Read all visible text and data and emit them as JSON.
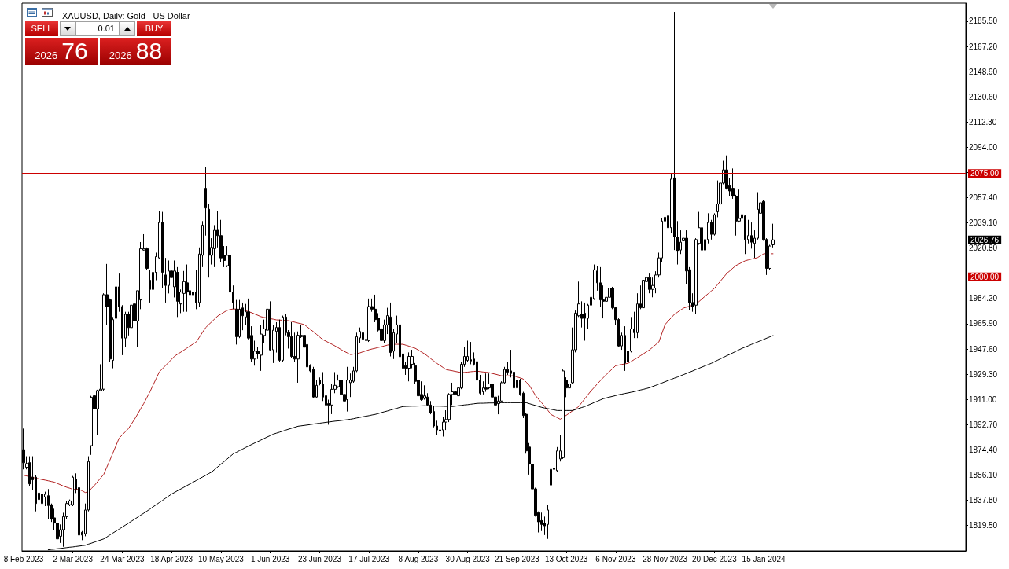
{
  "chart_data": {
    "type": "candlestick",
    "title": "XAUUSD, Daily: Gold - US Dollar",
    "color": "#000000",
    "annotations": [
      "SELL",
      "0.01",
      "BUY",
      "2026 76",
      "2026 88"
    ],
    "categories": [
      "8 Feb 2023",
      null,
      null,
      null,
      null,
      null,
      null,
      null,
      null,
      null,
      null,
      null,
      null,
      null,
      null,
      null,
      "2 Mar 2023",
      null,
      null,
      null,
      null,
      null,
      null,
      null,
      null,
      null,
      null,
      null,
      null,
      null,
      null,
      null,
      "24 Mar 2023",
      null,
      null,
      null,
      null,
      null,
      null,
      null,
      null,
      null,
      null,
      null,
      null,
      null,
      null,
      null,
      "18 Apr 2023",
      null,
      null,
      null,
      null,
      null,
      null,
      null,
      null,
      null,
      null,
      null,
      null,
      null,
      null,
      null,
      "10 May 2023",
      null,
      null,
      null,
      null,
      null,
      null,
      null,
      null,
      null,
      null,
      null,
      null,
      null,
      null,
      null,
      "1 Jun 2023",
      null,
      null,
      null,
      null,
      null,
      null,
      null,
      null,
      null,
      null,
      null,
      null,
      null,
      null,
      null,
      "23 Jun 2023",
      null,
      null,
      null,
      null,
      null,
      null,
      null,
      null,
      null,
      null,
      null,
      null,
      null,
      null,
      null,
      "17 Jul 2023",
      null,
      null,
      null,
      null,
      null,
      null,
      null,
      null,
      null,
      null,
      null,
      null,
      null,
      null,
      null,
      "8 Aug 2023",
      null,
      null,
      null,
      null,
      null,
      null,
      null,
      null,
      null,
      null,
      null,
      null,
      null,
      null,
      null,
      "30 Aug 2023",
      null,
      null,
      null,
      null,
      null,
      null,
      null,
      null,
      null,
      null,
      null,
      null,
      null,
      null,
      null,
      "21 Sep 2023",
      null,
      null,
      null,
      null,
      null,
      null,
      null,
      null,
      null,
      null,
      null,
      null,
      null,
      null,
      null,
      "13 Oct 2023",
      null,
      null,
      null,
      null,
      null,
      null,
      null,
      null,
      null,
      null,
      null,
      null,
      null,
      null,
      null,
      "6 Nov 2023",
      null,
      null,
      null,
      null,
      null,
      null,
      null,
      null,
      null,
      null,
      null,
      null,
      null,
      null,
      null,
      "28 Nov 2023",
      null,
      null,
      null,
      null,
      null,
      null,
      null,
      null,
      null,
      null,
      null,
      null,
      null,
      null,
      null,
      "20 Dec 2023",
      null,
      null,
      null,
      null,
      null,
      null,
      null,
      null,
      null,
      null,
      null,
      null,
      null,
      null,
      null,
      "15 Jan 2024",
      null,
      null,
      null
    ],
    "ohlc": [
      [
        1874.5,
        1889.8,
        1860.2,
        1865.0
      ],
      [
        1861.7,
        1869.7,
        1860.2,
        1864.4
      ],
      [
        1865.0,
        1869.7,
        1848.0,
        1849.7
      ],
      [
        1854.5,
        1869.7,
        1845.0,
        1852.6
      ],
      [
        1854.5,
        1856.0,
        1829.7,
        1835.4
      ],
      [
        1843.0,
        1846.9,
        1833.5,
        1838.3
      ],
      [
        1835.4,
        1844.0,
        1818.3,
        1842.1
      ],
      [
        1840.2,
        1844.0,
        1833.5,
        1842.1
      ],
      [
        1841.1,
        1845.9,
        1824.0,
        1833.9
      ],
      [
        1834.5,
        1835.4,
        1822.0,
        1824.0
      ],
      [
        1825.0,
        1831.6,
        1816.4,
        1821.2
      ],
      [
        1821.2,
        1826.9,
        1807.8,
        1809.7
      ],
      [
        1811.6,
        1820.2,
        1806.8,
        1816.4
      ],
      [
        1816.4,
        1828.7,
        1804.0,
        1825.9
      ],
      [
        1825.9,
        1837.3,
        1824.0,
        1835.4
      ],
      [
        1834.5,
        1838.3,
        1833.5,
        1837.3
      ],
      [
        1834.5,
        1855.4,
        1833.5,
        1854.5
      ],
      [
        1853.0,
        1857.3,
        1843.0,
        1845.9
      ],
      [
        1846.9,
        1848.0,
        1811.6,
        1812.5
      ],
      [
        1814.5,
        1815.4,
        1808.8,
        1812.5
      ],
      [
        1813.5,
        1835.4,
        1811.6,
        1830.7
      ],
      [
        1830.7,
        1869.7,
        1829.7,
        1865.9
      ],
      [
        1877.4,
        1913.6,
        1870.7,
        1912.6
      ],
      [
        1913.6,
        1914.0,
        1895.5,
        1904.1
      ],
      [
        1904.1,
        1918.0,
        1885.0,
        1917.4
      ],
      [
        1917.4,
        1936.5,
        1917.0,
        1918.4
      ],
      [
        1918.4,
        1988.0,
        1917.4,
        1987.0
      ],
      [
        1987.0,
        2009.3,
        1965.1,
        1978.4
      ],
      [
        1983.2,
        1984.2,
        1938.4,
        1940.3
      ],
      [
        1939.3,
        1970.8,
        1933.6,
        1968.9
      ],
      [
        1969.8,
        2002.3,
        1968.9,
        1992.7
      ],
      [
        1992.7,
        2002.3,
        1974.6,
        1978.4
      ],
      [
        1978.4,
        1979.4,
        1943.1,
        1955.5
      ],
      [
        1955.5,
        1974.6,
        1948.9,
        1972.7
      ],
      [
        1972.7,
        1974.6,
        1957.4,
        1963.1
      ],
      [
        1963.1,
        1986.0,
        1957.4,
        1979.4
      ],
      [
        1980.3,
        1987.0,
        1966.0,
        1967.9
      ],
      [
        1967.9,
        1989.9,
        1948.9,
        1989.9
      ],
      [
        1983.2,
        2025.2,
        1976.5,
        2020.4
      ],
      [
        2019.4,
        2030.9,
        2019.0,
        2020.4
      ],
      [
        2020.4,
        2021.3,
        2005.0,
        2006.1
      ],
      [
        1997.5,
        2005.0,
        1981.3,
        1990.8
      ],
      [
        1990.8,
        2007.0,
        1989.9,
        2003.2
      ],
      [
        2003.2,
        2017.5,
        1997.5,
        2014.6
      ],
      [
        2013.7,
        2048.0,
        2013.0,
        2039.4
      ],
      [
        2039.4,
        2047.1,
        1991.8,
        2003.2
      ],
      [
        2001.3,
        2013.7,
        1981.3,
        1993.7
      ],
      [
        1993.7,
        2011.8,
        1987.9,
        2004.2
      ],
      [
        2004.2,
        2008.9,
        1968.9,
        1999.4
      ],
      [
        1992.7,
        2011.8,
        1985.0,
        2004.2
      ],
      [
        2003.2,
        2007.0,
        1970.8,
        1982.2
      ],
      [
        1980.3,
        1990.8,
        1973.6,
        1988.9
      ],
      [
        1987.9,
        2004.2,
        1974.6,
        1996.5
      ],
      [
        1995.6,
        2008.9,
        1974.6,
        1988.9
      ],
      [
        1989.9,
        1993.7,
        1973.6,
        1987.0
      ],
      [
        1986.9,
        1990.8,
        1976.5,
        1988.9
      ],
      [
        1988.9,
        2005.1,
        1976.5,
        1981.3
      ],
      [
        1981.3,
        2021.3,
        1978.4,
        2016.5
      ],
      [
        2015.6,
        2040.4,
        2007.0,
        2037.5
      ],
      [
        2064.2,
        2079.5,
        2029.9,
        2049.9
      ],
      [
        2049.0,
        2052.8,
        1999.4,
        2015.6
      ],
      [
        2015.6,
        2028.0,
        2008.9,
        2021.3
      ],
      [
        2020.4,
        2037.5,
        2007.0,
        2033.7
      ],
      [
        2033.7,
        2048.0,
        2021.3,
        2029.9
      ],
      [
        2029.9,
        2041.3,
        2010.8,
        2013.7
      ],
      [
        2015.6,
        2022.3,
        2007.0,
        2011.8
      ],
      [
        2008.0,
        2022.3,
        2007.0,
        2015.6
      ],
      [
        2015.6,
        2016.5,
        1987.9,
        1988.9
      ],
      [
        1988.9,
        1993.7,
        1976.5,
        1981.3
      ],
      [
        1976.5,
        1983.2,
        1950.8,
        1956.5
      ],
      [
        1956.5,
        1983.2,
        1955.5,
        1976.5
      ],
      [
        1977.4,
        1981.3,
        1961.2,
        1971.7
      ],
      [
        1970.8,
        1980.3,
        1965.1,
        1974.6
      ],
      [
        1974.6,
        1984.2,
        1954.6,
        1955.5
      ],
      [
        1957.4,
        1964.1,
        1938.4,
        1940.3
      ],
      [
        1940.3,
        1953.6,
        1935.5,
        1946.0
      ],
      [
        1946.0,
        1948.9,
        1940.3,
        1944.1
      ],
      [
        1943.1,
        1965.1,
        1931.7,
        1958.4
      ],
      [
        1957.4,
        1968.9,
        1951.7,
        1962.2
      ],
      [
        1961.2,
        1983.2,
        1955.5,
        1976.5
      ],
      [
        1976.5,
        1982.2,
        1946.0,
        1946.9
      ],
      [
        1947.0,
        1965.1,
        1937.4,
        1961.2
      ],
      [
        1960.3,
        1967.0,
        1945.0,
        1963.2
      ],
      [
        1963.2,
        1968.9,
        1938.4,
        1939.4
      ],
      [
        1939.4,
        1971.8,
        1938.4,
        1970.8
      ],
      [
        1970.8,
        1972.7,
        1957.5,
        1959.4
      ],
      [
        1959.4,
        1961.3,
        1947.9,
        1956.5
      ],
      [
        1956.5,
        1967.0,
        1941.3,
        1942.2
      ],
      [
        1942.2,
        1959.4,
        1938.4,
        1940.3
      ],
      [
        1940.3,
        1960.3,
        1923.1,
        1957.5
      ],
      [
        1956.5,
        1965.1,
        1955.6,
        1957.5
      ],
      [
        1957.5,
        1958.4,
        1947.9,
        1948.9
      ],
      [
        1950.8,
        1951.7,
        1929.8,
        1934.6
      ],
      [
        1935.5,
        1936.5,
        1930.8,
        1931.7
      ],
      [
        1932.7,
        1934.6,
        1911.7,
        1912.7
      ],
      [
        1912.7,
        1925.0,
        1911.7,
        1921.2
      ],
      [
        1925.0,
        1926.9,
        1921.2,
        1922.2
      ],
      [
        1922.2,
        1930.8,
        1909.8,
        1912.7
      ],
      [
        1913.6,
        1914.5,
        1902.2,
        1906.9
      ],
      [
        1907.9,
        1910.8,
        1892.6,
        1906.9
      ],
      [
        1906.9,
        1922.2,
        1900.3,
        1918.3
      ],
      [
        1918.3,
        1930.8,
        1915.5,
        1921.2
      ],
      [
        1920.2,
        1928.9,
        1919.3,
        1925.0
      ],
      [
        1925.0,
        1934.6,
        1913.6,
        1914.6
      ],
      [
        1914.6,
        1915.5,
        1907.9,
        1909.8
      ],
      [
        1910.8,
        1934.6,
        1902.2,
        1925.0
      ],
      [
        1923.1,
        1929.8,
        1912.7,
        1925.0
      ],
      [
        1924.1,
        1934.6,
        1923.1,
        1931.7
      ],
      [
        1931.7,
        1959.4,
        1930.8,
        1956.5
      ],
      [
        1955.6,
        1963.2,
        1951.7,
        1960.3
      ],
      [
        1954.6,
        1960.3,
        1951.7,
        1959.4
      ],
      [
        1954.6,
        1960.3,
        1945.0,
        1953.7
      ],
      [
        1953.7,
        1984.2,
        1952.7,
        1978.4
      ],
      [
        1978.4,
        1984.2,
        1974.6,
        1976.5
      ],
      [
        1976.5,
        1987.0,
        1967.0,
        1968.9
      ],
      [
        1969.9,
        1973.6,
        1960.3,
        1961.3
      ],
      [
        1962.2,
        1967.0,
        1951.7,
        1953.7
      ],
      [
        1953.7,
        1968.9,
        1951.7,
        1965.1
      ],
      [
        1965.1,
        1977.5,
        1958.4,
        1971.8
      ],
      [
        1970.8,
        1981.3,
        1942.2,
        1945.0
      ],
      [
        1946.0,
        1962.0,
        1940.3,
        1959.4
      ],
      [
        1958.4,
        1971.8,
        1951.7,
        1965.1
      ],
      [
        1965.1,
        1966.0,
        1934.6,
        1942.0
      ],
      [
        1944.0,
        1951.7,
        1932.7,
        1933.6
      ],
      [
        1935.5,
        1938.4,
        1928.8,
        1933.6
      ],
      [
        1933.6,
        1945.1,
        1924.1,
        1942.2
      ],
      [
        1936.5,
        1947.0,
        1933.6,
        1942.2
      ],
      [
        1935.5,
        1937.4,
        1922.2,
        1924.1
      ],
      [
        1925.0,
        1929.8,
        1912.7,
        1913.6
      ],
      [
        1914.6,
        1924.1,
        1910.0,
        1910.8
      ],
      [
        1911.7,
        1921.2,
        1910.8,
        1913.6
      ],
      [
        1912.7,
        1915.5,
        1906.0,
        1906.9
      ],
      [
        1906.9,
        1909.8,
        1900.2,
        1901.2
      ],
      [
        1902.2,
        1906.0,
        1890.7,
        1891.7
      ],
      [
        1891.7,
        1895.5,
        1885.0,
        1888.8
      ],
      [
        1888.8,
        1895.5,
        1886.0,
        1888.2
      ],
      [
        1888.8,
        1898.3,
        1884.0,
        1894.5
      ],
      [
        1894.5,
        1903.1,
        1888.8,
        1896.4
      ],
      [
        1896.4,
        1915.5,
        1894.5,
        1914.6
      ],
      [
        1914.6,
        1923.1,
        1906.9,
        1916.5
      ],
      [
        1916.5,
        1922.2,
        1904.1,
        1914.6
      ],
      [
        1913.6,
        1923.1,
        1912.7,
        1919.3
      ],
      [
        1919.3,
        1938.4,
        1918.4,
        1936.5
      ],
      [
        1936.5,
        1948.9,
        1934.6,
        1942.2
      ],
      [
        1939.3,
        1953.6,
        1938.4,
        1942.2
      ],
      [
        1939.8,
        1952.7,
        1936.5,
        1938.9
      ],
      [
        1940.3,
        1945.1,
        1935.5,
        1936.5
      ],
      [
        1938.4,
        1939.3,
        1924.1,
        1925.0
      ],
      [
        1925.0,
        1928.8,
        1914.6,
        1915.5
      ],
      [
        1916.5,
        1924.1,
        1914.6,
        1919.3
      ],
      [
        1919.3,
        1929.8,
        1916.5,
        1918.4
      ],
      [
        1919.3,
        1929.8,
        1918.4,
        1922.2
      ],
      [
        1922.2,
        1925.0,
        1911.7,
        1912.7
      ],
      [
        1912.7,
        1915.5,
        1906.0,
        1906.9
      ],
      [
        1907.9,
        1913.6,
        1900.2,
        1909.8
      ],
      [
        1909.8,
        1924.1,
        1908.8,
        1923.1
      ],
      [
        1923.1,
        1934.6,
        1922.2,
        1932.7
      ],
      [
        1932.7,
        1938.4,
        1928.8,
        1930.8
      ],
      [
        1931.7,
        1947.0,
        1926.9,
        1929.8
      ],
      [
        1930.8,
        1931.7,
        1913.6,
        1919.3
      ],
      [
        1919.3,
        1926.9,
        1917.4,
        1925.0
      ],
      [
        1925.0,
        1926.0,
        1913.6,
        1914.6
      ],
      [
        1915.5,
        1916.5,
        1897.4,
        1899.3
      ],
      [
        1900.2,
        1901.2,
        1871.6,
        1873.6
      ],
      [
        1876.4,
        1879.3,
        1856.4,
        1864.0
      ],
      [
        1864.0,
        1866.0,
        1845.0,
        1846.0
      ],
      [
        1846.0,
        1846.9,
        1825.9,
        1826.8
      ],
      [
        1828.8,
        1829.7,
        1814.4,
        1822.1
      ],
      [
        1823.0,
        1828.8,
        1815.4,
        1820.2
      ],
      [
        1821.1,
        1825.9,
        1812.5,
        1819.2
      ],
      [
        1820.2,
        1834.5,
        1809.7,
        1830.7
      ],
      [
        1848.8,
        1862.1,
        1843.1,
        1860.2
      ],
      [
        1860.2,
        1869.7,
        1852.6,
        1861.1
      ],
      [
        1859.3,
        1876.4,
        1858.3,
        1873.6
      ],
      [
        1867.8,
        1885.0,
        1865.9,
        1873.6
      ],
      [
        1868.7,
        1932.7,
        1867.8,
        1931.7
      ],
      [
        1925.0,
        1927.0,
        1912.6,
        1919.3
      ],
      [
        1919.3,
        1930.8,
        1912.6,
        1922.2
      ],
      [
        1923.1,
        1963.2,
        1922.2,
        1947.0
      ],
      [
        1947.0,
        1975.5,
        1945.1,
        1973.6
      ],
      [
        1971.7,
        1996.5,
        1970.8,
        1980.3
      ],
      [
        1972.7,
        1982.2,
        1963.2,
        1969.8
      ],
      [
        1973.6,
        1981.3,
        1953.6,
        1969.8
      ],
      [
        1969.8,
        1980.3,
        1962.2,
        1979.4
      ],
      [
        1979.4,
        1990.8,
        1970.8,
        1985.1
      ],
      [
        1984.1,
        2008.9,
        1983.2,
        2005.1
      ],
      [
        2004.2,
        2008.0,
        1989.9,
        1995.6
      ],
      [
        1995.6,
        2007.0,
        1978.4,
        1983.2
      ],
      [
        1983.2,
        1993.7,
        1969.8,
        1982.2
      ],
      [
        1982.2,
        1989.9,
        1977.5,
        1985.1
      ],
      [
        1985.1,
        2004.2,
        1980.3,
        1991.8
      ],
      [
        1991.8,
        1992.7,
        1976.5,
        1977.5
      ],
      [
        1977.5,
        1978.4,
        1965.1,
        1968.9
      ],
      [
        1968.9,
        1969.8,
        1948.9,
        1949.8
      ],
      [
        1949.8,
        1959.4,
        1947.0,
        1957.4
      ],
      [
        1957.4,
        1964.1,
        1931.7,
        1937.4
      ],
      [
        1938.4,
        1948.9,
        1930.8,
        1946.0
      ],
      [
        1946.0,
        1970.8,
        1945.1,
        1962.2
      ],
      [
        1962.2,
        1974.6,
        1955.5,
        1959.4
      ],
      [
        1959.4,
        1988.0,
        1955.5,
        1980.3
      ],
      [
        1980.3,
        1993.7,
        1976.5,
        1977.5
      ],
      [
        1977.5,
        2007.0,
        1964.1,
        1997.5
      ],
      [
        1996.5,
        2008.0,
        1990.8,
        1999.4
      ],
      [
        1999.4,
        2002.3,
        1988.0,
        1990.8
      ],
      [
        1990.8,
        1999.4,
        1985.1,
        1993.7
      ],
      [
        1991.8,
        2004.0,
        1988.0,
        2001.3
      ],
      [
        2001.3,
        2017.5,
        1999.4,
        2013.7
      ],
      [
        2013.7,
        2042.3,
        2010.8,
        2040.4
      ],
      [
        2040.4,
        2051.8,
        2036.6,
        2043.2
      ],
      [
        2044.2,
        2046.1,
        2031.8,
        2035.6
      ],
      [
        2035.6,
        2074.7,
        2031.8,
        2070.9
      ],
      [
        2071.8,
        2192.3,
        2019.4,
        2028.9
      ],
      [
        2028.9,
        2040.4,
        2008.9,
        2018.5
      ],
      [
        2019.4,
        2033.7,
        2016.5,
        2025.1
      ],
      [
        2026.1,
        2039.4,
        2021.3,
        2028.0
      ],
      [
        2028.0,
        2033.7,
        1994.6,
        2004.2
      ],
      [
        2005.1,
        2007.0,
        1975.6,
        1981.3
      ],
      [
        1981.3,
        1988.0,
        1974.6,
        1978.4
      ],
      [
        1979.4,
        2028.0,
        1972.7,
        2027.0
      ],
      [
        2024.2,
        2047.1,
        2023.2,
        2035.6
      ],
      [
        2035.6,
        2045.1,
        2018.5,
        2019.4
      ],
      [
        2019.4,
        2033.7,
        2014.6,
        2027.0
      ],
      [
        2027.0,
        2046.1,
        2024.2,
        2039.4
      ],
      [
        2039.4,
        2041.3,
        2027.0,
        2030.8
      ],
      [
        2030.8,
        2046.1,
        2029.9,
        2045.1
      ],
      [
        2047.1,
        2069.9,
        2043.2,
        2052.8
      ],
      [
        2052.8,
        2069.9,
        2051.8,
        2068.0
      ],
      [
        2068.0,
        2084.2,
        2067.1,
        2077.6
      ],
      [
        2077.6,
        2088.1,
        2063.3,
        2064.2
      ],
      [
        2066.1,
        2071.8,
        2058.5,
        2062.3
      ],
      [
        2064.2,
        2078.6,
        2056.6,
        2058.5
      ],
      [
        2058.5,
        2059.5,
        2029.9,
        2040.4
      ],
      [
        2040.4,
        2063.3,
        2039.4,
        2042.3
      ],
      [
        2042.3,
        2047.1,
        2024.2,
        2045.1
      ],
      [
        2044.2,
        2045.1,
        2016.5,
        2027.0
      ],
      [
        2027.0,
        2041.3,
        2024.2,
        2029.9
      ],
      [
        2029.9,
        2039.4,
        2020.4,
        2025.1
      ],
      [
        2024.2,
        2033.7,
        2013.7,
        2028.0
      ],
      [
        2028.0,
        2061.4,
        2027.0,
        2049.0
      ],
      [
        2046.1,
        2058.5,
        2045.1,
        2053.7
      ],
      [
        2054.7,
        2055.6,
        2026.1,
        2027.0
      ],
      [
        2027.0,
        2028.0,
        2001.3,
        2006.1
      ],
      [
        2006.1,
        2023.2,
        2005.1,
        2022.3
      ],
      [
        2023.2,
        2038.5,
        2021.3,
        2026.76
      ]
    ],
    "series": [
      {
        "type": "line",
        "color": "#b22222",
        "values": [
          1856.0,
          1855.4,
          1854.9,
          1854.3,
          1853.8,
          1853.3,
          1852.8,
          1852.4,
          1851.9,
          1851.4,
          1850.9,
          1849.9,
          1849.0,
          1848.0,
          1847.2,
          1846.5,
          1845.7,
          1845.7,
          1845.7,
          1844.6,
          1843.4,
          1844.0,
          1846.3,
          1848.6,
          1851.3,
          1853.9,
          1856.6,
          1861.8,
          1866.9,
          1872.2,
          1877.6,
          1882.9,
          1885.2,
          1887.5,
          1889.8,
          1893.2,
          1896.6,
          1900.4,
          1904.3,
          1908.1,
          1912.4,
          1916.6,
          1921.4,
          1926.1,
          1930.9,
          1933.2,
          1935.5,
          1937.8,
          1940.1,
          1942.4,
          1943.9,
          1945.3,
          1946.8,
          1948.3,
          1949.8,
          1951.2,
          1952.7,
          1956.1,
          1959.6,
          1963.0,
          1965.2,
          1967.3,
          1969.5,
          1971.6,
          1972.9,
          1974.3,
          1975.6,
          1976.2,
          1976.7,
          1976.5,
          1976.3,
          1976.1,
          1975.4,
          1974.6,
          1973.9,
          1972.9,
          1972.0,
          1971.0,
          1970.5,
          1970.1,
          1969.6,
          1969.2,
          1968.7,
          1968.6,
          1968.4,
          1968.3,
          1968.1,
          1967.5,
          1967.0,
          1966.4,
          1965.9,
          1965.3,
          1963.6,
          1961.8,
          1960.1,
          1958.2,
          1956.3,
          1954.4,
          1953.3,
          1952.1,
          1951.0,
          1949.8,
          1948.5,
          1947.1,
          1945.8,
          1944.7,
          1943.5,
          1943.9,
          1944.3,
          1944.7,
          1945.5,
          1946.2,
          1947.0,
          1947.6,
          1948.1,
          1948.7,
          1949.2,
          1949.8,
          1950.4,
          1951.0,
          1951.0,
          1951.0,
          1951.0,
          1951.0,
          1950.3,
          1949.6,
          1948.8,
          1948.1,
          1946.8,
          1945.4,
          1944.1,
          1942.4,
          1940.6,
          1938.9,
          1937.2,
          1935.7,
          1934.2,
          1932.7,
          1932.2,
          1931.8,
          1931.3,
          1930.9,
          1930.4,
          1930.6,
          1930.8,
          1931.1,
          1931.3,
          1931.5,
          1931.2,
          1930.9,
          1930.7,
          1930.4,
          1929.8,
          1929.3,
          1928.7,
          1928.1,
          1928.1,
          1928.1,
          1928.1,
          1928.1,
          1927.3,
          1926.6,
          1925.8,
          1923.5,
          1921.2,
          1917.5,
          1913.8,
          1911.1,
          1908.5,
          1905.8,
          1903.0,
          1900.1,
          1898.9,
          1897.8,
          1896.6,
          1898.1,
          1899.5,
          1901.1,
          1902.7,
          1904.2,
          1905.8,
          1908.7,
          1911.5,
          1914.4,
          1917.2,
          1919.6,
          1922.1,
          1924.5,
          1926.9,
          1929.1,
          1931.2,
          1933.4,
          1935.5,
          1935.9,
          1936.4,
          1936.8,
          1937.2,
          1938.5,
          1939.9,
          1941.2,
          1942.7,
          1944.1,
          1945.6,
          1947.0,
          1948.9,
          1950.8,
          1952.7,
          1959.0,
          1965.3,
          1967.8,
          1970.2,
          1972.7,
          1974.2,
          1975.8,
          1977.3,
          1978.0,
          1978.7,
          1979.4,
          1980.1,
          1982.0,
          1984.0,
          1985.9,
          1987.8,
          1989.7,
          1991.6,
          1994.3,
          1997.0,
          1999.7,
          2002.4,
          2004.3,
          2006.3,
          2008.2,
          2009.3,
          2010.5,
          2011.6,
          2012.2,
          2012.8,
          2013.3,
          2013.9,
          2015.3,
          2016.7,
          2016.7,
          2016.7,
          2016.7
        ]
      },
      {
        "type": "line",
        "color": "#000000",
        "values": [
          null,
          null,
          null,
          null,
          null,
          null,
          null,
          null,
          1801.8,
          1802.1,
          1802.3,
          1802.6,
          1802.8,
          1803.1,
          1803.4,
          1803.7,
          1803.9,
          1804.2,
          1804.5,
          1804.8,
          1805.1,
          1805.9,
          1806.6,
          1807.4,
          1808.2,
          1808.9,
          1809.7,
          1811.1,
          1812.6,
          1814.0,
          1815.4,
          1816.8,
          1818.3,
          1819.7,
          1821.1,
          1822.6,
          1824.0,
          1825.5,
          1827.0,
          1828.4,
          1829.9,
          1831.4,
          1833.0,
          1834.5,
          1836.1,
          1837.6,
          1839.2,
          1840.7,
          1842.3,
          1843.5,
          1844.8,
          1846.0,
          1847.2,
          1848.5,
          1849.7,
          1850.9,
          1852.1,
          1853.4,
          1854.6,
          1855.8,
          1857.1,
          1858.3,
          1860.2,
          1862.1,
          1864.0,
          1865.8,
          1867.7,
          1869.6,
          1871.5,
          1872.6,
          1873.8,
          1874.9,
          1876.1,
          1877.2,
          1878.3,
          1879.4,
          1880.4,
          1881.5,
          1882.6,
          1883.7,
          1884.7,
          1885.8,
          1886.5,
          1887.2,
          1887.9,
          1888.7,
          1889.4,
          1890.1,
          1890.8,
          1891.5,
          1891.8,
          1892.1,
          1892.4,
          1892.7,
          1893.1,
          1893.4,
          1893.7,
          1894.0,
          1894.3,
          1894.6,
          1894.9,
          1895.2,
          1895.4,
          1895.7,
          1896.0,
          1896.3,
          1896.6,
          1897.0,
          1897.5,
          1897.9,
          1898.4,
          1898.8,
          1899.2,
          1899.7,
          1900.1,
          1900.7,
          1901.4,
          1902.0,
          1902.6,
          1903.3,
          1903.9,
          1904.5,
          1905.2,
          1905.8,
          1905.9,
          1906.0,
          1906.1,
          1906.1,
          1906.2,
          1906.3,
          1906.4,
          1906.3,
          1906.3,
          1906.2,
          1906.1,
          1906.1,
          1906.0,
          1905.9,
          1905.9,
          1905.8,
          1906.1,
          1906.4,
          1906.7,
          1907.0,
          1907.2,
          1907.5,
          1907.8,
          1908.1,
          1908.2,
          1908.2,
          1908.3,
          1908.4,
          1908.4,
          1908.5,
          1908.5,
          1908.6,
          1908.6,
          1908.6,
          1908.6,
          1908.6,
          1908.6,
          1908.6,
          1908.6,
          1908.6,
          1907.9,
          1907.2,
          1906.6,
          1905.9,
          1905.2,
          1904.7,
          1904.3,
          1903.8,
          1903.4,
          1902.9,
          1902.9,
          1902.9,
          1902.9,
          1902.9,
          1902.9,
          1903.6,
          1904.4,
          1905.1,
          1905.8,
          1906.8,
          1907.7,
          1908.7,
          1909.6,
          1910.6,
          1911.5,
          1912.1,
          1912.7,
          1913.2,
          1913.8,
          1914.4,
          1914.8,
          1915.3,
          1915.7,
          1916.2,
          1916.6,
          1917.2,
          1917.8,
          1918.3,
          1918.9,
          1919.5,
          1920.4,
          1921.2,
          1922.1,
          1922.9,
          1923.8,
          1924.7,
          1925.5,
          1926.4,
          1927.2,
          1928.1,
          1929.0,
          1929.9,
          1930.8,
          1931.7,
          1932.7,
          1933.6,
          1934.5,
          1935.4,
          1936.3,
          1937.2,
          1938.3,
          1939.4,
          1940.5,
          1941.6,
          1942.7,
          1943.7,
          1944.8,
          1945.9,
          1947.0,
          1948.1,
          1949.0,
          1949.9,
          1950.9,
          1951.8,
          1952.7,
          1953.6,
          1954.5,
          1955.5,
          1956.4,
          1957.3
        ]
      }
    ],
    "ylim": [
      1801.0,
      2198.6
    ],
    "yticks": [
      {
        "value": 1819.5,
        "label": "1819.50"
      },
      {
        "value": 1837.8,
        "label": "1837.80"
      },
      {
        "value": 1856.1,
        "label": "1856.10"
      },
      {
        "value": 1874.4,
        "label": "1874.40"
      },
      {
        "value": 1892.7,
        "label": "1892.70"
      },
      {
        "value": 1911,
        "label": "1911.00"
      },
      {
        "value": 1929.3,
        "label": "1929.30"
      },
      {
        "value": 1947.6,
        "label": "1947.60"
      },
      {
        "value": 1965.9,
        "label": "1965.90"
      },
      {
        "value": 1984.2,
        "label": "1984.20"
      },
      {
        "value": 2020.8,
        "label": "2020.80"
      },
      {
        "value": 2039.1,
        "label": "2039.10"
      },
      {
        "value": 2057.4,
        "label": "2057.40"
      },
      {
        "value": 2075.7,
        "label": null
      },
      {
        "value": 2094,
        "label": "2094.00"
      },
      {
        "value": 2112.3,
        "label": "2112.30"
      },
      {
        "value": 2130.6,
        "label": "2130.60"
      },
      {
        "value": 2148.9,
        "label": "2148.90"
      },
      {
        "value": 2167.2,
        "label": "2167.20"
      },
      {
        "value": 2185.5,
        "label": "2185.50"
      }
    ],
    "ref_lines": [
      {
        "axis": "y",
        "value": 2075,
        "label": "2075.00",
        "color": "#cc0000"
      },
      {
        "axis": "y",
        "value": 2026.76,
        "label": "2026.76",
        "color": "#000000"
      },
      {
        "axis": "y",
        "value": 2000,
        "label": "2000.00",
        "color": "#cc0000"
      }
    ],
    "marker": "none"
  }
}
